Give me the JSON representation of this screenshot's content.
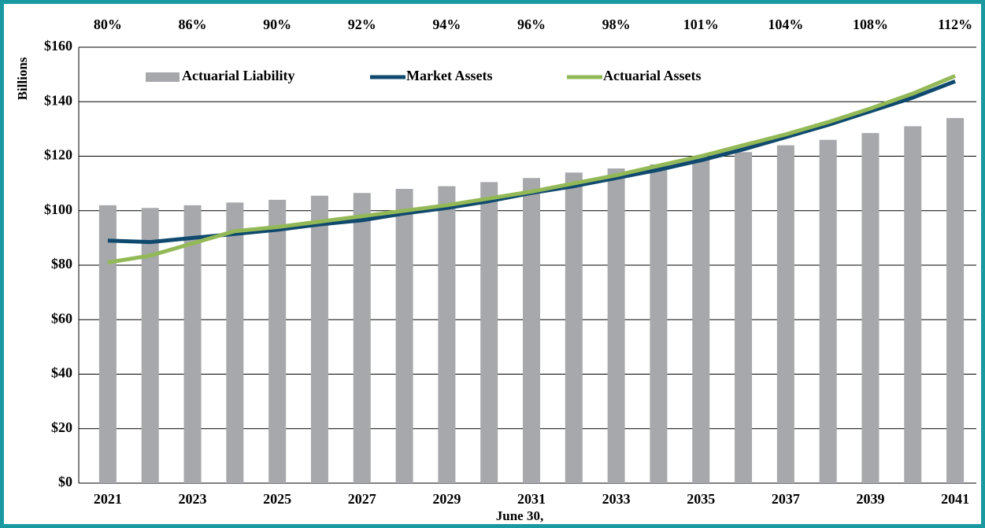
{
  "chart_data": {
    "type": "bar",
    "y_label": "Billions",
    "x_label": "June 30,",
    "categories": [
      "2021",
      null,
      "2023",
      null,
      "2025",
      null,
      "2027",
      null,
      "2029",
      null,
      "2031",
      null,
      "2033",
      null,
      "2035",
      null,
      "2037",
      null,
      "2039",
      null,
      "2041"
    ],
    "top_categories": [
      "80%",
      null,
      "86%",
      null,
      "90%",
      null,
      "92%",
      null,
      "94%",
      null,
      "96%",
      null,
      "98%",
      null,
      "101%",
      null,
      "104%",
      null,
      "108%",
      null,
      "112%"
    ],
    "series": [
      {
        "name": "Actuarial Liability",
        "type": "bar",
        "color": "#a6a8ab",
        "values": [
          102,
          101,
          102,
          103,
          104,
          105.5,
          106.5,
          108,
          109,
          110.5,
          112,
          114,
          115.5,
          117,
          119,
          121.5,
          124,
          126,
          128.5,
          131,
          134
        ]
      },
      {
        "name": "Market Assets",
        "type": "line",
        "color": "#0f4a6e",
        "values": [
          89,
          88.5,
          90,
          91.5,
          93,
          95,
          96.5,
          99,
          101,
          103.5,
          106.5,
          109,
          112,
          115,
          118.5,
          122.5,
          127,
          131.5,
          136.5,
          141.5,
          147.5
        ]
      },
      {
        "name": "Actuarial Assets",
        "type": "line",
        "color": "#93b957",
        "values": [
          81,
          83.5,
          88,
          92.5,
          94,
          96,
          98,
          100,
          102,
          104.5,
          107,
          110,
          113,
          116.5,
          120,
          124,
          128,
          132.5,
          137.5,
          143,
          149.5
        ]
      }
    ],
    "ylim": [
      0,
      160
    ],
    "yticks": [
      {
        "value": 0,
        "label": "$0"
      },
      {
        "value": 20,
        "label": "$20"
      },
      {
        "value": 40,
        "label": "$40"
      },
      {
        "value": 60,
        "label": "$60"
      },
      {
        "value": 80,
        "label": "$80"
      },
      {
        "value": 100,
        "label": "$100"
      },
      {
        "value": 120,
        "label": "$120"
      },
      {
        "value": 140,
        "label": "$140"
      },
      {
        "value": 160,
        "label": "$160"
      }
    ],
    "grid": true
  }
}
